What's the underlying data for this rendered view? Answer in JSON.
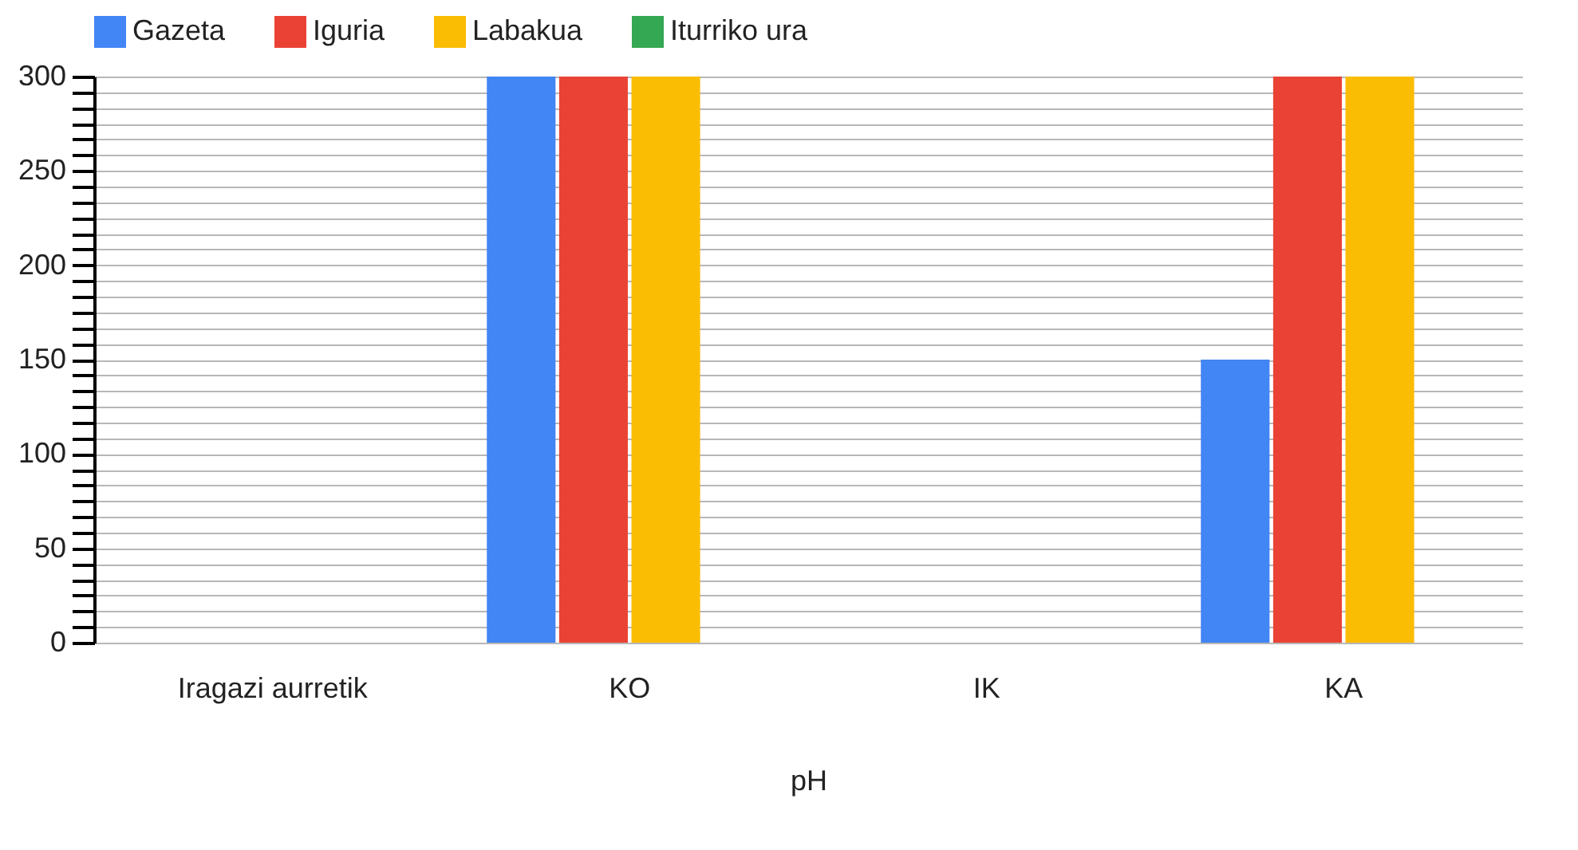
{
  "chart_data": {
    "type": "bar",
    "xlabel": "pH",
    "categories": [
      "Iragazi aurretik",
      "KO",
      "IK",
      "KA"
    ],
    "series": [
      {
        "name": "Gazeta",
        "color": "#4285f4",
        "values": [
          0,
          300,
          0,
          150
        ]
      },
      {
        "name": "Iguria",
        "color": "#ea4335",
        "values": [
          0,
          300,
          0,
          300
        ]
      },
      {
        "name": "Labakua",
        "color": "#fbbc04",
        "values": [
          0,
          300,
          0,
          300
        ]
      },
      {
        "name": "Iturriko ura",
        "color": "#34a853",
        "values": [
          0,
          null,
          null,
          null
        ]
      }
    ],
    "ylim": [
      0,
      300
    ],
    "yticks": [
      0,
      {
        "value": 8.33,
        "label": null
      },
      {
        "value": 16.67,
        "label": null
      },
      {
        "value": 25,
        "label": null
      },
      {
        "value": 33.33,
        "label": null
      },
      {
        "value": 41.67,
        "label": null
      },
      50,
      {
        "value": 58.33,
        "label": null
      },
      {
        "value": 66.67,
        "label": null
      },
      {
        "value": 75,
        "label": null
      },
      {
        "value": 83.33,
        "label": null
      },
      {
        "value": 91.67,
        "label": null
      },
      100,
      {
        "value": 108.33,
        "label": null
      },
      {
        "value": 116.67,
        "label": null
      },
      {
        "value": 125,
        "label": null
      },
      {
        "value": 133.33,
        "label": null
      },
      {
        "value": 141.67,
        "label": null
      },
      150,
      {
        "value": 158.33,
        "label": null
      },
      {
        "value": 166.67,
        "label": null
      },
      {
        "value": 175,
        "label": null
      },
      {
        "value": 183.33,
        "label": null
      },
      {
        "value": 191.67,
        "label": null
      },
      200,
      {
        "value": 208.33,
        "label": null
      },
      {
        "value": 216.67,
        "label": null
      },
      {
        "value": 225,
        "label": null
      },
      {
        "value": 233.33,
        "label": null
      },
      {
        "value": 241.67,
        "label": null
      },
      250,
      {
        "value": 258.33,
        "label": null
      },
      {
        "value": 266.67,
        "label": null
      },
      {
        "value": 275,
        "label": null
      },
      {
        "value": 283.33,
        "label": null
      },
      {
        "value": 291.67,
        "label": null
      },
      300
    ],
    "grid": true,
    "legend": "top"
  }
}
